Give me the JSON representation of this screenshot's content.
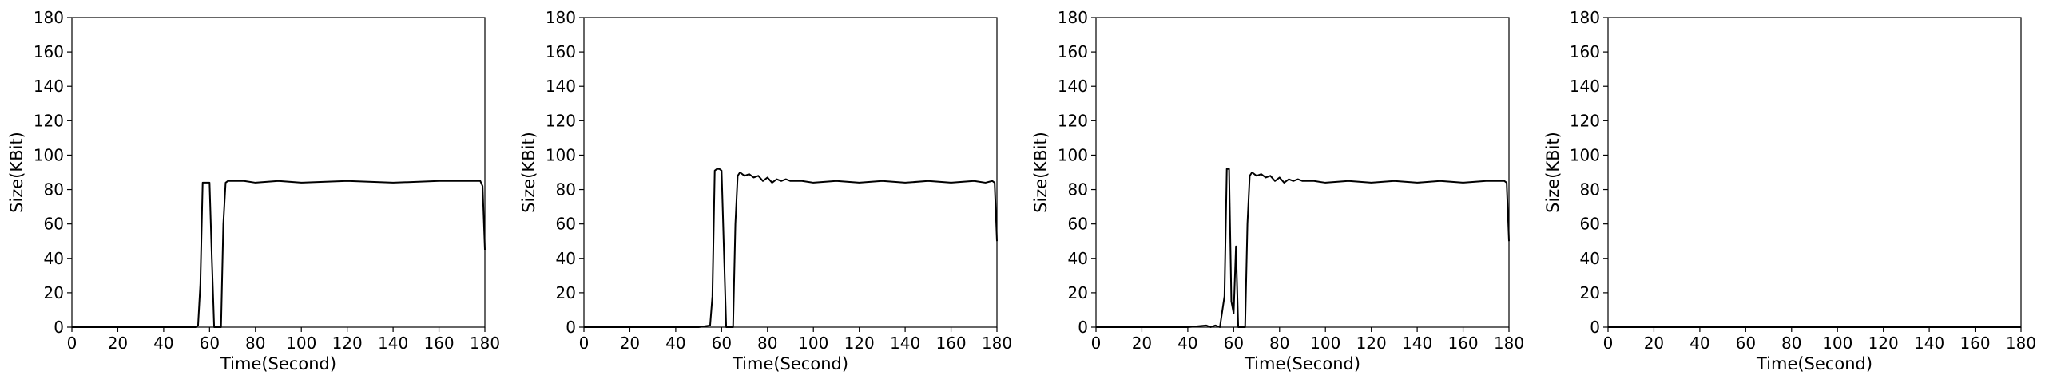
{
  "chart_data": [
    {
      "type": "line",
      "xlabel": "Time(Second)",
      "ylabel": "Size(KBit)",
      "xlim": [
        0,
        180
      ],
      "ylim": [
        0,
        180
      ],
      "xticks": [
        0,
        20,
        40,
        60,
        80,
        100,
        120,
        140,
        160,
        180
      ],
      "yticks": [
        0,
        20,
        40,
        60,
        80,
        100,
        120,
        140,
        160,
        180
      ],
      "grid": false,
      "series": [
        {
          "color": "#000000",
          "x": [
            0,
            54,
            55,
            56,
            57,
            58,
            59,
            60,
            61,
            62,
            63,
            64,
            65,
            66,
            67,
            68,
            70,
            75,
            80,
            90,
            100,
            120,
            140,
            160,
            178,
            179,
            180
          ],
          "y": [
            0,
            0,
            1,
            25,
            84,
            84,
            84,
            84,
            40,
            0,
            0,
            0,
            0,
            60,
            84,
            85,
            85,
            85,
            84,
            85,
            84,
            85,
            84,
            85,
            85,
            82,
            45
          ]
        }
      ]
    },
    {
      "type": "line",
      "xlabel": "Time(Second)",
      "ylabel": "Size(KBit)",
      "xlim": [
        0,
        180
      ],
      "ylim": [
        0,
        180
      ],
      "xticks": [
        0,
        20,
        40,
        60,
        80,
        100,
        120,
        140,
        160,
        180
      ],
      "yticks": [
        0,
        20,
        40,
        60,
        80,
        100,
        120,
        140,
        160,
        180
      ],
      "grid": false,
      "series": [
        {
          "color": "#000000",
          "x": [
            0,
            10,
            20,
            30,
            40,
            50,
            55,
            56,
            57,
            58,
            59,
            60,
            61,
            62,
            63,
            64,
            65,
            66,
            67,
            68,
            70,
            72,
            74,
            76,
            78,
            80,
            82,
            84,
            86,
            88,
            90,
            95,
            100,
            110,
            120,
            130,
            140,
            150,
            160,
            170,
            175,
            178,
            179,
            180
          ],
          "y": [
            0,
            0,
            0,
            0,
            0,
            0,
            1,
            18,
            91,
            92,
            92,
            91,
            45,
            0,
            0,
            0,
            0,
            60,
            88,
            90,
            88,
            89,
            87,
            88,
            85,
            87,
            84,
            86,
            85,
            86,
            85,
            85,
            84,
            85,
            84,
            85,
            84,
            85,
            84,
            85,
            84,
            85,
            84,
            50
          ]
        }
      ]
    },
    {
      "type": "line",
      "xlabel": "Time(Second)",
      "ylabel": "Size(KBit)",
      "xlim": [
        0,
        180
      ],
      "ylim": [
        0,
        180
      ],
      "xticks": [
        0,
        20,
        40,
        60,
        80,
        100,
        120,
        140,
        160,
        180
      ],
      "yticks": [
        0,
        20,
        40,
        60,
        80,
        100,
        120,
        140,
        160,
        180
      ],
      "grid": false,
      "series": [
        {
          "color": "#000000",
          "x": [
            0,
            10,
            20,
            30,
            40,
            48,
            50,
            52,
            54,
            56,
            57,
            58,
            59,
            60,
            61,
            62,
            63,
            64,
            65,
            66,
            67,
            68,
            70,
            72,
            74,
            76,
            78,
            80,
            82,
            84,
            86,
            88,
            90,
            95,
            100,
            110,
            120,
            130,
            140,
            150,
            160,
            170,
            178,
            179,
            180
          ],
          "y": [
            0,
            0,
            0,
            0,
            0,
            1,
            0,
            1,
            0,
            18,
            92,
            92,
            15,
            8,
            47,
            0,
            0,
            0,
            0,
            60,
            88,
            90,
            88,
            89,
            87,
            88,
            85,
            87,
            84,
            86,
            85,
            86,
            85,
            85,
            84,
            85,
            84,
            85,
            84,
            85,
            84,
            85,
            85,
            84,
            50
          ]
        }
      ]
    },
    {
      "type": "line",
      "xlabel": "Time(Second)",
      "ylabel": "Size(KBit)",
      "xlim": [
        0,
        180
      ],
      "ylim": [
        0,
        180
      ],
      "xticks": [
        0,
        20,
        40,
        60,
        80,
        100,
        120,
        140,
        160,
        180
      ],
      "yticks": [
        0,
        20,
        40,
        60,
        80,
        100,
        120,
        140,
        160,
        180
      ],
      "grid": false,
      "series": [
        {
          "color": "#000000",
          "x": [
            0,
            180
          ],
          "y": [
            0,
            0
          ]
        }
      ]
    }
  ]
}
